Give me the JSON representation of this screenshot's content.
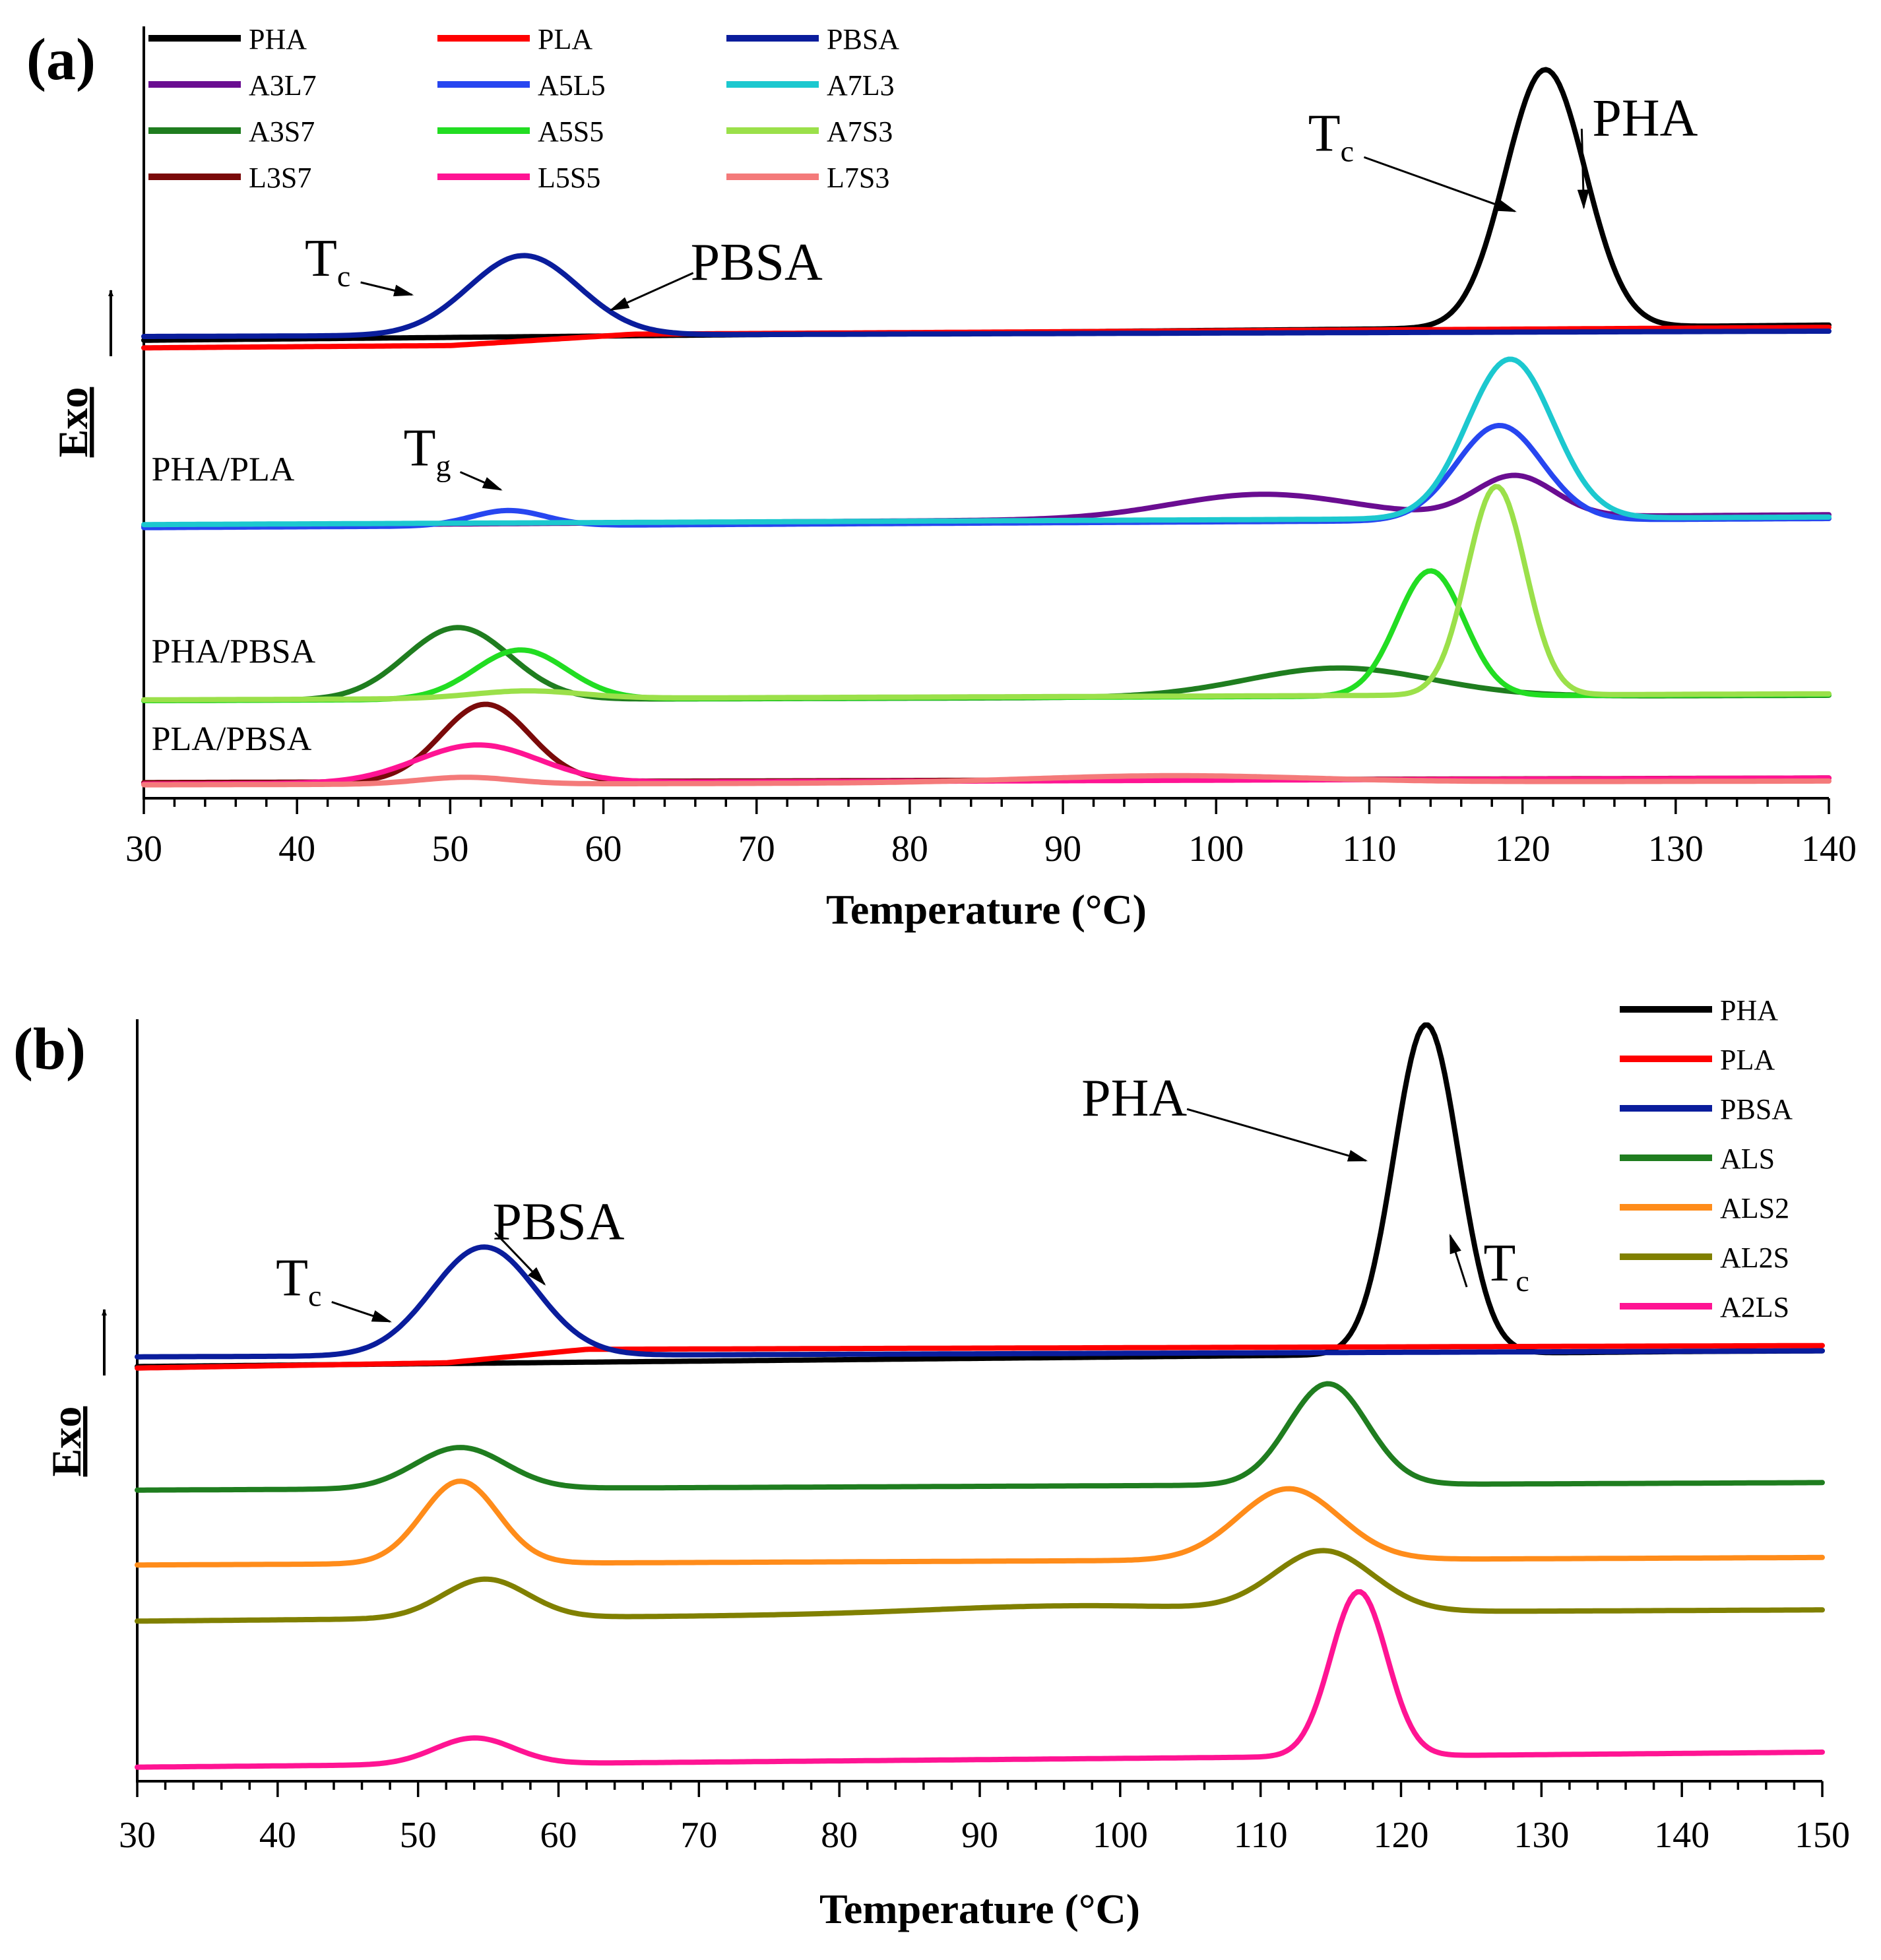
{
  "colors": {
    "PHA": "#000000",
    "PLA": "#ff0000",
    "PBSA": "#0a1d9c",
    "A3L7": "#6a0d91",
    "A5L5": "#2746f0",
    "A7L3": "#1cc8cf",
    "A3S7": "#1f7d1f",
    "A5S5": "#22dd22",
    "A7S3": "#9be04a",
    "L3S7": "#7a0a0a",
    "L5S5": "#ff1493",
    "L7S3": "#f47a7a",
    "ALS": "#1f7d1f",
    "ALS2": "#ff8c1a",
    "AL2S": "#808000",
    "A2LS": "#ff1493"
  },
  "chart_data": [
    {
      "panel": "(a)",
      "type": "line",
      "xlabel": "Temperature (°C)",
      "ylabel": "Exo",
      "xlim": [
        30,
        140
      ],
      "ylim": [
        0,
        100
      ],
      "xticks": [
        "30",
        "40",
        "50",
        "60",
        "70",
        "80",
        "90",
        "100",
        "110",
        "120",
        "130",
        "140"
      ],
      "legend": {
        "position": "top-left",
        "columns": 3,
        "entries": [
          "PHA",
          "PLA",
          "PBSA",
          "A3L7",
          "A5L5",
          "A7L3",
          "A3S7",
          "A5S5",
          "A7S3",
          "L3S7",
          "L5S5",
          "L7S3"
        ]
      },
      "group_labels": [
        {
          "text": "PHA/PLA",
          "x": 30.5,
          "y": 41
        },
        {
          "text": "PHA/PBSA",
          "x": 30.5,
          "y": 17
        },
        {
          "text": "PLA/PBSA",
          "x": 30.5,
          "y": 5.5
        }
      ],
      "annotations": [
        {
          "text": "T",
          "sub": "c",
          "x": 42,
          "y": 68,
          "to": [
            47.5,
            65.5
          ]
        },
        {
          "text": "PBSA",
          "x": 70,
          "y": 67.5,
          "to": [
            60.5,
            63.5
          ]
        },
        {
          "text": "T",
          "sub": "c",
          "x": 107.5,
          "y": 84.5,
          "to": [
            119.5,
            76.5
          ]
        },
        {
          "text": "PHA",
          "x": 128,
          "y": 86.5,
          "to": [
            124,
            77
          ]
        },
        {
          "text": "T",
          "sub": "g",
          "x": 48.5,
          "y": 43,
          "to": [
            53.3,
            39.8
          ]
        }
      ],
      "series": [
        {
          "name": "PHA",
          "baseline": [
            [
              30,
              59.5
            ],
            [
              100,
              60.8
            ],
            [
              140,
              61.5
            ]
          ],
          "peaks": [
            {
              "center": 121.5,
              "height": 34,
              "width": 2.6
            }
          ]
        },
        {
          "name": "PLA",
          "baseline": [
            [
              30,
              58.5
            ],
            [
              50,
              58.8
            ],
            [
              62,
              60.3
            ],
            [
              140,
              61.2
            ]
          ],
          "peaks": []
        },
        {
          "name": "PBSA",
          "baseline": [
            [
              30,
              60.0
            ],
            [
              140,
              60.7
            ]
          ],
          "peaks": [
            {
              "center": 54.8,
              "height": 10.5,
              "width": 3.6
            }
          ]
        },
        {
          "name": "A3L7",
          "baseline": [
            [
              30,
              35.0
            ],
            [
              140,
              36.5
            ]
          ],
          "peaks": [
            {
              "center": 103,
              "height": 3.2,
              "width": 6
            },
            {
              "center": 119.5,
              "height": 5.4,
              "width": 2.6
            }
          ]
        },
        {
          "name": "A5L5",
          "baseline": [
            [
              30,
              34.8
            ],
            [
              140,
              36.0
            ]
          ],
          "peaks": [
            {
              "center": 53.8,
              "height": 2.0,
              "width": 2.4
            },
            {
              "center": 118.5,
              "height": 12.5,
              "width": 2.8
            }
          ]
        },
        {
          "name": "A7L3",
          "baseline": [
            [
              30,
              35.2
            ],
            [
              140,
              36.2
            ]
          ],
          "peaks": [
            {
              "center": 119.2,
              "height": 21,
              "width": 2.8
            }
          ]
        },
        {
          "name": "A3S7",
          "baseline": [
            [
              30,
              12.0
            ],
            [
              140,
              12.7
            ]
          ],
          "peaks": [
            {
              "center": 50.5,
              "height": 9.5,
              "width": 3.4
            },
            {
              "center": 108,
              "height": 3.8,
              "width": 6
            }
          ]
        },
        {
          "name": "A5S5",
          "baseline": [
            [
              30,
              12.0
            ],
            [
              140,
              12.8
            ]
          ],
          "peaks": [
            {
              "center": 54.6,
              "height": 6.5,
              "width": 3
            },
            {
              "center": 114,
              "height": 16.5,
              "width": 2.2
            }
          ]
        },
        {
          "name": "A7S3",
          "baseline": [
            [
              30,
              12.1
            ],
            [
              140,
              12.9
            ]
          ],
          "peaks": [
            {
              "center": 55,
              "height": 1.0,
              "width": 3.5
            },
            {
              "center": 118.3,
              "height": 27.5,
              "width": 1.9
            }
          ]
        },
        {
          "name": "L3S7",
          "baseline": [
            [
              30,
              1.2
            ],
            [
              140,
              1.8
            ]
          ],
          "peaks": [
            {
              "center": 52.3,
              "height": 10.2,
              "width": 2.9
            }
          ]
        },
        {
          "name": "L5S5",
          "baseline": [
            [
              30,
              1.0
            ],
            [
              140,
              1.8
            ]
          ],
          "peaks": [
            {
              "center": 51.8,
              "height": 5.0,
              "width": 4
            }
          ]
        },
        {
          "name": "L7S3",
          "baseline": [
            [
              30,
              0.9
            ],
            [
              140,
              1.4
            ]
          ],
          "peaks": [
            {
              "center": 51,
              "height": 0.9,
              "width": 3
            },
            {
              "center": 97,
              "height": 0.9,
              "width": 9
            }
          ]
        }
      ]
    },
    {
      "panel": "(b)",
      "type": "line",
      "xlabel": "Temperature (°C)",
      "ylabel": "Exo",
      "xlim": [
        30,
        150
      ],
      "ylim": [
        0,
        100
      ],
      "xticks": [
        "30",
        "40",
        "50",
        "60",
        "70",
        "80",
        "90",
        "100",
        "110",
        "120",
        "130",
        "140",
        "150"
      ],
      "legend": {
        "position": "top-right",
        "columns": 1,
        "entries": [
          "PHA",
          "PLA",
          "PBSA",
          "ALS",
          "ALS2",
          "AL2S",
          "A2LS"
        ]
      },
      "group_labels": [],
      "annotations": [
        {
          "text": "T",
          "sub": "c",
          "x": 41.5,
          "y": 64,
          "to": [
            48,
            60.5
          ]
        },
        {
          "text": "PBSA",
          "x": 60,
          "y": 71.5,
          "to": [
            59,
            65.5
          ]
        },
        {
          "text": "PHA",
          "x": 101,
          "y": 88,
          "to": [
            117.5,
            82
          ]
        },
        {
          "text": "T",
          "sub": "c",
          "x": 127.5,
          "y": 66,
          "to": [
            123.5,
            72
          ]
        }
      ],
      "series": [
        {
          "name": "PHA",
          "baseline": [
            [
              30,
              54.5
            ],
            [
              140,
              56.5
            ],
            [
              150,
              56.6
            ]
          ],
          "peaks": [
            {
              "center": 121.8,
              "height": 44,
              "width": 2.3
            }
          ]
        },
        {
          "name": "PLA",
          "baseline": [
            [
              30,
              54.3
            ],
            [
              52,
              55.0
            ],
            [
              62,
              56.8
            ],
            [
              150,
              57.3
            ]
          ],
          "peaks": []
        },
        {
          "name": "PBSA",
          "baseline": [
            [
              30,
              55.8
            ],
            [
              150,
              56.6
            ]
          ],
          "peaks": [
            {
              "center": 54.7,
              "height": 14.5,
              "width": 3.7
            }
          ]
        },
        {
          "name": "ALS",
          "baseline": [
            [
              30,
              38.0
            ],
            [
              150,
              39.0
            ]
          ],
          "peaks": [
            {
              "center": 53,
              "height": 5.5,
              "width": 3.2
            },
            {
              "center": 114.8,
              "height": 13.5,
              "width": 2.8
            }
          ]
        },
        {
          "name": "ALS2",
          "baseline": [
            [
              30,
              28.0
            ],
            [
              150,
              29.0
            ]
          ],
          "peaks": [
            {
              "center": 53,
              "height": 11,
              "width": 2.7
            },
            {
              "center": 112,
              "height": 9.5,
              "width": 3.6
            }
          ]
        },
        {
          "name": "AL2S",
          "baseline": [
            [
              30,
              20.5
            ],
            [
              90,
              21.5
            ],
            [
              150,
              22.0
            ]
          ],
          "peaks": [
            {
              "center": 54.8,
              "height": 5.2,
              "width": 3
            },
            {
              "center": 97,
              "height": 1.0,
              "width": 10
            },
            {
              "center": 114.5,
              "height": 8.0,
              "width": 3.5
            }
          ]
        },
        {
          "name": "A2LS",
          "baseline": [
            [
              30,
              1.0
            ],
            [
              150,
              3.0
            ]
          ],
          "peaks": [
            {
              "center": 54,
              "height": 3.5,
              "width": 2.8
            },
            {
              "center": 117,
              "height": 22,
              "width": 2
            }
          ]
        }
      ]
    }
  ]
}
